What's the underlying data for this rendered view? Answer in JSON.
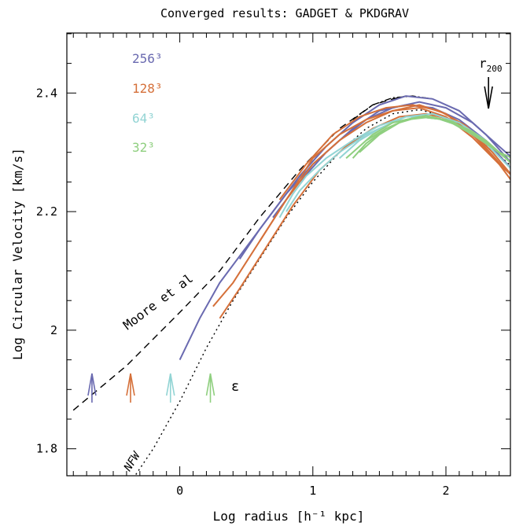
{
  "chart_data": {
    "type": "line",
    "title": "Converged results: GADGET & PKDGRAV",
    "xlabel": "Log radius [h⁻¹ kpc]",
    "ylabel": "Log Circular Velocity [km/s]",
    "xlim": [
      -0.8,
      2.5
    ],
    "ylim": [
      1.75,
      2.5
    ],
    "x_ticks": [
      0,
      1,
      2
    ],
    "x_tick_labels": [
      "0",
      "1",
      "2"
    ],
    "y_ticks": [
      1.8,
      2.0,
      2.2,
      2.4
    ],
    "y_tick_labels": [
      "1.8",
      "2",
      "2.2",
      "2.4"
    ],
    "legend": [
      {
        "label": "256³",
        "color": "#6a6ab0"
      },
      {
        "label": "128³",
        "color": "#d5703a"
      },
      {
        "label": "64³",
        "color": "#92d4d4"
      },
      {
        "label": "32³",
        "color": "#8fcf7f"
      }
    ],
    "legend_placement": "top-left",
    "annotations": {
      "moore": "Moore et al",
      "nfw": "NFW",
      "epsilon": "ε",
      "r200": "r",
      "r200_sub": "200"
    },
    "reference_curves": [
      {
        "name": "Moore et al",
        "style": "dashed",
        "x": [
          -0.8,
          -0.4,
          0.0,
          0.3,
          0.6,
          0.9,
          1.2,
          1.45,
          1.6,
          1.7
        ],
        "y": [
          1.865,
          1.94,
          2.03,
          2.1,
          2.19,
          2.27,
          2.34,
          2.38,
          2.39,
          2.395
        ]
      },
      {
        "name": "NFW",
        "style": "dotted",
        "x": [
          -0.35,
          -0.2,
          0.0,
          0.2,
          0.4,
          0.6,
          0.8,
          1.0,
          1.2,
          1.4,
          1.6,
          1.8,
          2.0,
          2.2,
          2.4,
          2.5
        ],
        "y": [
          1.75,
          1.8,
          1.88,
          1.97,
          2.05,
          2.12,
          2.19,
          2.25,
          2.3,
          2.34,
          2.365,
          2.372,
          2.36,
          2.33,
          2.295,
          2.275
        ]
      },
      {
        "name": "dash-dot",
        "style": "dashdot",
        "x": [
          1.3,
          1.45,
          1.6,
          1.75,
          1.9
        ],
        "y": [
          2.355,
          2.38,
          2.392,
          2.395,
          2.39
        ]
      }
    ],
    "series": [
      {
        "color": "#6a6ab0",
        "x": [
          0.0,
          0.15,
          0.3,
          0.5,
          0.7,
          0.9,
          1.1,
          1.3,
          1.5,
          1.7,
          1.9,
          2.1,
          2.3,
          2.5
        ],
        "y": [
          1.95,
          2.02,
          2.08,
          2.14,
          2.2,
          2.26,
          2.31,
          2.35,
          2.38,
          2.395,
          2.39,
          2.37,
          2.33,
          2.28
        ]
      },
      {
        "color": "#6a6ab0",
        "x": [
          0.45,
          0.6,
          0.8,
          1.0,
          1.2,
          1.4,
          1.6,
          1.8,
          2.0,
          2.2,
          2.4,
          2.5
        ],
        "y": [
          2.12,
          2.17,
          2.23,
          2.28,
          2.32,
          2.355,
          2.375,
          2.385,
          2.375,
          2.35,
          2.31,
          2.29
        ]
      },
      {
        "color": "#6a6ab0",
        "x": [
          0.7,
          0.9,
          1.1,
          1.3,
          1.5,
          1.7,
          1.9,
          2.1,
          2.3,
          2.5
        ],
        "y": [
          2.19,
          2.25,
          2.3,
          2.34,
          2.37,
          2.38,
          2.375,
          2.355,
          2.32,
          2.27
        ]
      },
      {
        "color": "#d5703a",
        "x": [
          0.25,
          0.4,
          0.6,
          0.8,
          1.0,
          1.2,
          1.4,
          1.6,
          1.8,
          2.0,
          2.2,
          2.4,
          2.5
        ],
        "y": [
          2.04,
          2.08,
          2.15,
          2.22,
          2.28,
          2.32,
          2.35,
          2.37,
          2.38,
          2.365,
          2.33,
          2.28,
          2.25
        ]
      },
      {
        "color": "#d5703a",
        "x": [
          0.3,
          0.45,
          0.65,
          0.85,
          1.05,
          1.25,
          1.45,
          1.65,
          1.85,
          2.05,
          2.25,
          2.45
        ],
        "y": [
          2.02,
          2.07,
          2.14,
          2.21,
          2.27,
          2.31,
          2.34,
          2.36,
          2.365,
          2.355,
          2.32,
          2.27
        ]
      },
      {
        "color": "#d5703a",
        "x": [
          0.6,
          0.8,
          1.0,
          1.2,
          1.4,
          1.6,
          1.8,
          2.0,
          2.2,
          2.4,
          2.5
        ],
        "y": [
          2.15,
          2.22,
          2.29,
          2.33,
          2.355,
          2.37,
          2.375,
          2.36,
          2.325,
          2.28,
          2.26
        ]
      },
      {
        "color": "#d5703a",
        "x": [
          0.75,
          0.95,
          1.15,
          1.35,
          1.55,
          1.75,
          1.95,
          2.15,
          2.35,
          2.5
        ],
        "y": [
          2.22,
          2.28,
          2.33,
          2.36,
          2.375,
          2.38,
          2.37,
          2.345,
          2.3,
          2.26
        ]
      },
      {
        "color": "#92d4d4",
        "x": [
          0.75,
          0.85,
          0.95,
          1.1,
          1.3,
          1.5,
          1.7,
          1.9,
          2.1,
          2.3,
          2.5
        ],
        "y": [
          2.19,
          2.23,
          2.26,
          2.29,
          2.32,
          2.345,
          2.36,
          2.36,
          2.345,
          2.315,
          2.27
        ]
      },
      {
        "color": "#92d4d4",
        "x": [
          0.8,
          0.9,
          1.05,
          1.2,
          1.4,
          1.6,
          1.8,
          2.0,
          2.2,
          2.4,
          2.5
        ],
        "y": [
          2.2,
          2.235,
          2.27,
          2.3,
          2.33,
          2.35,
          2.36,
          2.355,
          2.335,
          2.3,
          2.28
        ]
      },
      {
        "color": "#92d4d4",
        "x": [
          1.2,
          1.35,
          1.5,
          1.7,
          1.9,
          2.1,
          2.3,
          2.5
        ],
        "y": [
          2.29,
          2.32,
          2.34,
          2.36,
          2.365,
          2.35,
          2.32,
          2.28
        ]
      },
      {
        "color": "#8fcf7f",
        "x": [
          1.25,
          1.35,
          1.45,
          1.6,
          1.8,
          2.0,
          2.2,
          2.4,
          2.5
        ],
        "y": [
          2.29,
          2.31,
          2.33,
          2.35,
          2.36,
          2.355,
          2.33,
          2.3,
          2.28
        ]
      },
      {
        "color": "#8fcf7f",
        "x": [
          1.3,
          1.4,
          1.55,
          1.7,
          1.9,
          2.1,
          2.3,
          2.5
        ],
        "y": [
          2.29,
          2.315,
          2.34,
          2.355,
          2.36,
          2.345,
          2.32,
          2.28
        ]
      },
      {
        "color": "#8fcf7f",
        "x": [
          1.35,
          1.5,
          1.65,
          1.8,
          2.0,
          2.2,
          2.4,
          2.5
        ],
        "y": [
          2.3,
          2.33,
          2.35,
          2.36,
          2.355,
          2.335,
          2.3,
          2.29
        ]
      },
      {
        "color": "#8fcf7f",
        "x": [
          1.4,
          1.55,
          1.7,
          1.85,
          2.05,
          2.25,
          2.45
        ],
        "y": [
          2.32,
          2.34,
          2.355,
          2.362,
          2.352,
          2.325,
          2.29
        ]
      }
    ],
    "softening_arrows": [
      {
        "x": -0.66,
        "y": 1.895,
        "color": "#6a6ab0"
      },
      {
        "x": -0.37,
        "y": 1.895,
        "color": "#d5703a"
      },
      {
        "x": -0.07,
        "y": 1.895,
        "color": "#92d4d4"
      },
      {
        "x": 0.23,
        "y": 1.895,
        "color": "#8fcf7f"
      }
    ],
    "r200_arrow": {
      "x": 2.32,
      "y": 2.42
    }
  }
}
